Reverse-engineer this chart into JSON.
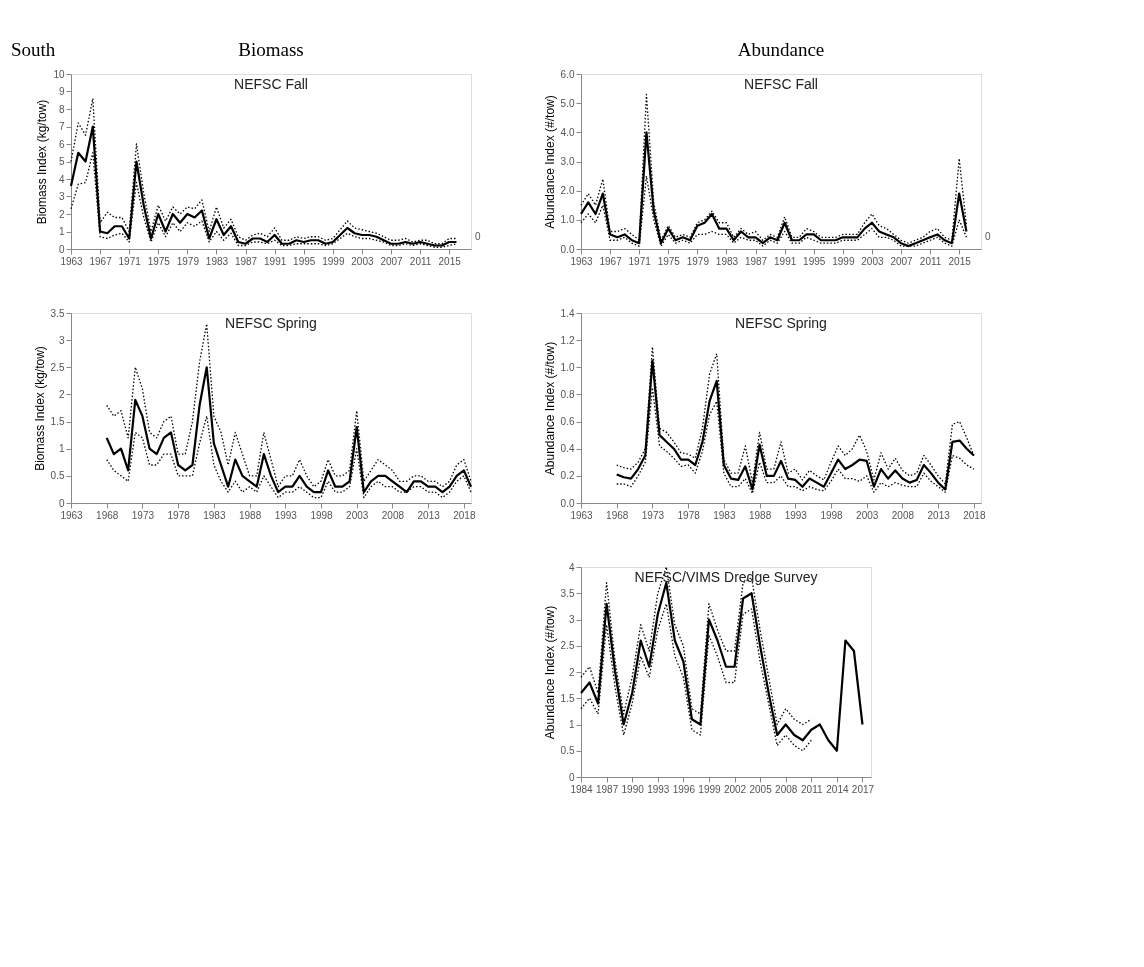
{
  "chart_data": [
    {
      "type": "line",
      "title": "NEFSC Fall",
      "ylabel": "Biomass Index (kg/tow)",
      "annotations": [
        "South",
        "Biomass",
        "0"
      ],
      "grid": false,
      "xlim": [
        1963,
        2018
      ],
      "xticks": [
        1963,
        1967,
        1971,
        1975,
        1979,
        1983,
        1987,
        1991,
        1995,
        1999,
        2003,
        2007,
        2011,
        2015
      ],
      "ylim": [
        0,
        10
      ],
      "yticks": [
        0,
        1,
        2,
        3,
        4,
        5,
        6,
        7,
        8,
        9,
        10
      ],
      "x": [
        1963,
        1964,
        1965,
        1966,
        1967,
        1968,
        1969,
        1970,
        1971,
        1972,
        1973,
        1974,
        1975,
        1976,
        1977,
        1978,
        1979,
        1980,
        1981,
        1982,
        1983,
        1984,
        1985,
        1986,
        1987,
        1988,
        1989,
        1990,
        1991,
        1992,
        1993,
        1994,
        1995,
        1996,
        1997,
        1998,
        1999,
        2000,
        2001,
        2002,
        2003,
        2004,
        2005,
        2006,
        2007,
        2008,
        2009,
        2010,
        2011,
        2012,
        2013,
        2014,
        2015,
        2016
      ],
      "series": [
        {
          "color": "#000000",
          "line_style": "solid",
          "values": [
            3.6,
            5.5,
            5.0,
            7.0,
            1.0,
            0.9,
            1.3,
            1.3,
            0.6,
            5.0,
            2.5,
            0.6,
            2.0,
            1.0,
            2.0,
            1.5,
            2.0,
            1.8,
            2.2,
            0.6,
            1.7,
            0.8,
            1.3,
            0.4,
            0.3,
            0.6,
            0.6,
            0.4,
            0.8,
            0.3,
            0.3,
            0.5,
            0.4,
            0.5,
            0.5,
            0.3,
            0.4,
            0.8,
            1.2,
            0.9,
            0.8,
            0.8,
            0.7,
            0.5,
            0.3,
            0.3,
            0.4,
            0.3,
            0.4,
            0.3,
            0.2,
            0.2,
            0.4,
            0.4
          ]
        },
        {
          "color": "#000000",
          "line_style": "dotted",
          "values": [
            5.0,
            7.2,
            6.5,
            8.6,
            1.5,
            2.1,
            1.8,
            1.8,
            1.0,
            6.0,
            3.2,
            1.0,
            2.5,
            1.6,
            2.4,
            2.0,
            2.4,
            2.3,
            2.8,
            1.0,
            2.4,
            1.2,
            1.7,
            0.7,
            0.5,
            0.8,
            0.9,
            0.7,
            1.2,
            0.5,
            0.5,
            0.7,
            0.6,
            0.7,
            0.7,
            0.5,
            0.6,
            1.1,
            1.6,
            1.2,
            1.1,
            1.0,
            0.9,
            0.7,
            0.5,
            0.5,
            0.6,
            0.4,
            0.5,
            0.5,
            0.3,
            0.3,
            0.6,
            0.6
          ]
        },
        {
          "color": "#000000",
          "line_style": "dotted",
          "values": [
            2.3,
            3.7,
            3.8,
            5.5,
            0.7,
            0.6,
            0.8,
            0.9,
            0.4,
            3.8,
            1.8,
            0.4,
            1.5,
            0.7,
            1.5,
            1.0,
            1.5,
            1.3,
            1.6,
            0.4,
            1.0,
            0.5,
            0.9,
            0.2,
            0.2,
            0.4,
            0.4,
            0.3,
            0.5,
            0.2,
            0.2,
            0.3,
            0.3,
            0.3,
            0.3,
            0.2,
            0.3,
            0.6,
            0.9,
            0.7,
            0.6,
            0.6,
            0.5,
            0.4,
            0.2,
            0.2,
            0.3,
            0.2,
            0.3,
            0.2,
            0.1,
            0.1,
            0.2,
            0.3
          ]
        }
      ]
    },
    {
      "type": "line",
      "title": "NEFSC Fall",
      "ylabel": "Abundance Index (#/tow)",
      "annotations": [
        "Abundance",
        "0"
      ],
      "grid": false,
      "xlim": [
        1963,
        2018
      ],
      "xticks": [
        1963,
        1967,
        1971,
        1975,
        1979,
        1983,
        1987,
        1991,
        1995,
        1999,
        2003,
        2007,
        2011,
        2015
      ],
      "ylim": [
        0,
        6
      ],
      "yticks": [
        {
          "value": 0,
          "label": "0.0"
        },
        {
          "value": 1,
          "label": "1.0"
        },
        {
          "value": 2,
          "label": "2.0"
        },
        {
          "value": 3,
          "label": "3.0"
        },
        {
          "value": 4,
          "label": "4.0"
        },
        {
          "value": 5,
          "label": "5.0"
        },
        {
          "value": 6,
          "label": "6.0"
        }
      ],
      "x": [
        1963,
        1964,
        1965,
        1966,
        1967,
        1968,
        1969,
        1970,
        1971,
        1972,
        1973,
        1974,
        1975,
        1976,
        1977,
        1978,
        1979,
        1980,
        1981,
        1982,
        1983,
        1984,
        1985,
        1986,
        1987,
        1988,
        1989,
        1990,
        1991,
        1992,
        1993,
        1994,
        1995,
        1996,
        1997,
        1998,
        1999,
        2000,
        2001,
        2002,
        2003,
        2004,
        2005,
        2006,
        2007,
        2008,
        2009,
        2010,
        2011,
        2012,
        2013,
        2014,
        2015,
        2016
      ],
      "series": [
        {
          "color": "#000000",
          "line_style": "solid",
          "values": [
            1.2,
            1.6,
            1.2,
            1.9,
            0.5,
            0.4,
            0.5,
            0.3,
            0.2,
            4.0,
            1.3,
            0.2,
            0.7,
            0.3,
            0.4,
            0.3,
            0.8,
            0.9,
            1.2,
            0.7,
            0.7,
            0.3,
            0.6,
            0.4,
            0.4,
            0.2,
            0.4,
            0.3,
            0.9,
            0.3,
            0.3,
            0.5,
            0.5,
            0.3,
            0.3,
            0.3,
            0.4,
            0.4,
            0.4,
            0.7,
            0.9,
            0.6,
            0.5,
            0.4,
            0.2,
            0.1,
            0.2,
            0.3,
            0.4,
            0.5,
            0.3,
            0.2,
            1.9,
            0.6
          ]
        },
        {
          "color": "#000000",
          "line_style": "dotted",
          "values": [
            1.5,
            1.9,
            1.5,
            2.4,
            0.6,
            0.6,
            0.7,
            0.5,
            0.3,
            5.3,
            1.6,
            0.3,
            0.8,
            0.4,
            0.5,
            0.4,
            0.9,
            1.0,
            1.3,
            0.9,
            0.9,
            0.4,
            0.7,
            0.5,
            0.6,
            0.3,
            0.5,
            0.4,
            1.1,
            0.4,
            0.4,
            0.7,
            0.6,
            0.4,
            0.4,
            0.4,
            0.5,
            0.5,
            0.5,
            0.9,
            1.2,
            0.8,
            0.7,
            0.5,
            0.3,
            0.2,
            0.3,
            0.4,
            0.6,
            0.7,
            0.4,
            0.3,
            3.1,
            0.8
          ]
        },
        {
          "color": "#000000",
          "line_style": "dotted",
          "values": [
            0.9,
            1.2,
            0.9,
            1.5,
            0.3,
            0.3,
            0.4,
            0.2,
            0.1,
            2.5,
            1.0,
            0.1,
            0.5,
            0.2,
            0.3,
            0.2,
            0.5,
            0.5,
            0.6,
            0.5,
            0.5,
            0.2,
            0.4,
            0.3,
            0.3,
            0.1,
            0.3,
            0.2,
            0.6,
            0.2,
            0.2,
            0.4,
            0.3,
            0.2,
            0.2,
            0.2,
            0.3,
            0.3,
            0.3,
            0.5,
            0.7,
            0.4,
            0.4,
            0.3,
            0.1,
            0.1,
            0.1,
            0.2,
            0.3,
            0.4,
            0.2,
            0.1,
            1.0,
            0.4
          ]
        }
      ]
    },
    {
      "type": "line",
      "title": "NEFSC Spring",
      "ylabel": "Biomass Index (kg/tow)",
      "grid": false,
      "xlim": [
        1963,
        2019
      ],
      "xticks": [
        1963,
        1968,
        1973,
        1978,
        1983,
        1988,
        1993,
        1998,
        2003,
        2008,
        2013,
        2018
      ],
      "ylim": [
        0,
        3.5
      ],
      "yticks": [
        0,
        0.5,
        1,
        1.5,
        2,
        2.5,
        3,
        3.5
      ],
      "x": [
        1968,
        1969,
        1970,
        1971,
        1972,
        1973,
        1974,
        1975,
        1976,
        1977,
        1978,
        1979,
        1980,
        1981,
        1982,
        1983,
        1984,
        1985,
        1986,
        1987,
        1988,
        1989,
        1990,
        1991,
        1992,
        1993,
        1994,
        1995,
        1996,
        1997,
        1998,
        1999,
        2000,
        2001,
        2002,
        2003,
        2004,
        2005,
        2006,
        2007,
        2008,
        2009,
        2010,
        2011,
        2012,
        2013,
        2014,
        2015,
        2016,
        2017,
        2018,
        2019
      ],
      "series": [
        {
          "color": "#000000",
          "line_style": "solid",
          "values": [
            1.2,
            0.9,
            1.0,
            0.6,
            1.9,
            1.6,
            1.0,
            0.9,
            1.2,
            1.3,
            0.7,
            0.6,
            0.7,
            1.8,
            2.5,
            1.1,
            0.7,
            0.3,
            0.8,
            0.5,
            0.4,
            0.3,
            0.9,
            0.5,
            0.2,
            0.3,
            0.3,
            0.5,
            0.3,
            0.2,
            0.2,
            0.6,
            0.3,
            0.3,
            0.4,
            1.4,
            0.2,
            0.4,
            0.5,
            0.5,
            0.4,
            0.3,
            0.2,
            0.4,
            0.4,
            0.3,
            0.3,
            0.2,
            0.3,
            0.5,
            0.6,
            0.3
          ]
        },
        {
          "color": "#000000",
          "line_style": "dotted",
          "values": [
            1.8,
            1.6,
            1.7,
            1.2,
            2.5,
            2.1,
            1.3,
            1.2,
            1.5,
            1.6,
            0.9,
            0.9,
            1.5,
            2.6,
            3.3,
            1.6,
            1.3,
            0.7,
            1.3,
            0.9,
            0.5,
            0.5,
            1.3,
            0.8,
            0.3,
            0.5,
            0.5,
            0.8,
            0.5,
            0.3,
            0.4,
            0.8,
            0.5,
            0.5,
            0.6,
            1.7,
            0.4,
            0.6,
            0.8,
            0.7,
            0.6,
            0.4,
            0.4,
            0.5,
            0.5,
            0.4,
            0.4,
            0.3,
            0.4,
            0.7,
            0.8,
            0.4
          ]
        },
        {
          "color": "#000000",
          "line_style": "dotted",
          "values": [
            0.8,
            0.6,
            0.5,
            0.4,
            1.3,
            1.2,
            0.7,
            0.7,
            0.9,
            0.9,
            0.5,
            0.5,
            0.5,
            1.1,
            1.6,
            0.7,
            0.4,
            0.2,
            0.4,
            0.2,
            0.3,
            0.2,
            0.5,
            0.3,
            0.1,
            0.2,
            0.2,
            0.3,
            0.2,
            0.1,
            0.1,
            0.4,
            0.2,
            0.2,
            0.3,
            1.0,
            0.1,
            0.3,
            0.4,
            0.3,
            0.3,
            0.2,
            0.2,
            0.3,
            0.3,
            0.2,
            0.2,
            0.1,
            0.2,
            0.4,
            0.5,
            0.2
          ]
        }
      ]
    },
    {
      "type": "line",
      "title": "NEFSC Spring",
      "ylabel": "Abundance Index (#/tow)",
      "grid": false,
      "xlim": [
        1963,
        2019
      ],
      "xticks": [
        1963,
        1968,
        1973,
        1978,
        1983,
        1988,
        1993,
        1998,
        2003,
        2008,
        2013,
        2018
      ],
      "ylim": [
        0,
        1.4
      ],
      "yticks": [
        {
          "value": 0,
          "label": "0.0"
        },
        {
          "value": 0.2,
          "label": "0.2"
        },
        {
          "value": 0.4,
          "label": "0.4"
        },
        {
          "value": 0.6,
          "label": "0.6"
        },
        {
          "value": 0.8,
          "label": "0.8"
        },
        {
          "value": 1,
          "label": "1.0"
        },
        {
          "value": 1.2,
          "label": "1.2"
        },
        {
          "value": 1.4,
          "label": "1.4"
        }
      ],
      "x": [
        1968,
        1969,
        1970,
        1971,
        1972,
        1973,
        1974,
        1975,
        1976,
        1977,
        1978,
        1979,
        1980,
        1981,
        1982,
        1983,
        1984,
        1985,
        1986,
        1987,
        1988,
        1989,
        1990,
        1991,
        1992,
        1993,
        1994,
        1995,
        1996,
        1997,
        1998,
        1999,
        2000,
        2001,
        2002,
        2003,
        2004,
        2005,
        2006,
        2007,
        2008,
        2009,
        2010,
        2011,
        2012,
        2013,
        2014,
        2015,
        2016,
        2017,
        2018
      ],
      "series": [
        {
          "color": "#000000",
          "line_style": "solid",
          "values": [
            0.21,
            0.19,
            0.18,
            0.25,
            0.35,
            1.05,
            0.5,
            0.45,
            0.4,
            0.32,
            0.32,
            0.28,
            0.45,
            0.75,
            0.9,
            0.28,
            0.18,
            0.17,
            0.27,
            0.1,
            0.43,
            0.2,
            0.2,
            0.31,
            0.18,
            0.17,
            0.12,
            0.18,
            0.15,
            0.12,
            0.22,
            0.32,
            0.25,
            0.28,
            0.32,
            0.31,
            0.12,
            0.25,
            0.18,
            0.24,
            0.18,
            0.15,
            0.17,
            0.28,
            0.22,
            0.15,
            0.1,
            0.45,
            0.46,
            0.4,
            0.35
          ]
        },
        {
          "color": "#000000",
          "line_style": "dotted",
          "values": [
            0.28,
            0.26,
            0.25,
            0.3,
            0.4,
            1.15,
            0.55,
            0.52,
            0.45,
            0.37,
            0.36,
            0.33,
            0.55,
            0.95,
            1.1,
            0.32,
            0.22,
            0.22,
            0.42,
            0.15,
            0.52,
            0.25,
            0.25,
            0.45,
            0.22,
            0.25,
            0.17,
            0.24,
            0.2,
            0.17,
            0.3,
            0.42,
            0.35,
            0.4,
            0.5,
            0.38,
            0.17,
            0.37,
            0.25,
            0.33,
            0.24,
            0.2,
            0.22,
            0.35,
            0.28,
            0.2,
            0.14,
            0.58,
            0.6,
            0.48,
            0.35
          ]
        },
        {
          "color": "#000000",
          "line_style": "dotted",
          "values": [
            0.14,
            0.14,
            0.12,
            0.2,
            0.3,
            0.85,
            0.42,
            0.38,
            0.33,
            0.27,
            0.28,
            0.22,
            0.38,
            0.65,
            0.75,
            0.22,
            0.12,
            0.12,
            0.18,
            0.07,
            0.3,
            0.15,
            0.15,
            0.2,
            0.12,
            0.12,
            0.09,
            0.12,
            0.1,
            0.09,
            0.16,
            0.25,
            0.18,
            0.18,
            0.16,
            0.2,
            0.08,
            0.15,
            0.12,
            0.15,
            0.13,
            0.12,
            0.12,
            0.22,
            0.16,
            0.12,
            0.08,
            0.35,
            0.33,
            0.28,
            0.25
          ]
        }
      ]
    },
    {
      "type": "line",
      "title": "NEFSC/VIMS Dredge Survey",
      "ylabel": "Abundance Index (#/tow)",
      "grid": false,
      "xlim": [
        1984,
        2018
      ],
      "xticks": [
        1984,
        1987,
        1990,
        1993,
        1996,
        1999,
        2002,
        2005,
        2008,
        2011,
        2014,
        2017
      ],
      "ylim": [
        0,
        4
      ],
      "yticks": [
        0,
        0.5,
        1,
        1.5,
        2,
        2.5,
        3,
        3.5,
        4
      ],
      "x": [
        1984,
        1985,
        1986,
        1987,
        1988,
        1989,
        1990,
        1991,
        1992,
        1993,
        1994,
        1995,
        1996,
        1997,
        1998,
        1999,
        2000,
        2001,
        2002,
        2003,
        2004,
        2005,
        2006,
        2007,
        2008,
        2009,
        2010,
        2011,
        2012,
        2013,
        2014,
        2015,
        2016,
        2017
      ],
      "series": [
        {
          "color": "#000000",
          "line_style": "solid",
          "values": [
            1.6,
            1.8,
            1.4,
            3.3,
            2.0,
            1.0,
            1.6,
            2.6,
            2.1,
            3.1,
            3.7,
            2.6,
            2.2,
            1.1,
            1.0,
            3.0,
            2.6,
            2.1,
            2.1,
            3.4,
            3.5,
            2.5,
            1.6,
            0.8,
            1.0,
            0.8,
            0.7,
            0.9,
            1.0,
            0.7,
            0.5,
            2.6,
            2.4,
            1.0
          ]
        },
        {
          "color": "#000000",
          "line_style": "dotted",
          "values": [
            1.9,
            2.1,
            1.6,
            3.7,
            2.2,
            1.2,
            1.9,
            2.9,
            2.4,
            3.5,
            4.0,
            2.9,
            2.5,
            1.3,
            1.2,
            3.3,
            2.8,
            2.4,
            2.4,
            3.7,
            3.8,
            2.8,
            1.9,
            1.0,
            1.3,
            1.1,
            1.0,
            1.1,
            null,
            null,
            null,
            null,
            null,
            null
          ]
        },
        {
          "color": "#000000",
          "line_style": "dotted",
          "values": [
            1.3,
            1.5,
            1.2,
            2.9,
            1.7,
            0.8,
            1.4,
            2.3,
            1.9,
            2.8,
            3.3,
            2.3,
            1.9,
            0.9,
            0.8,
            2.7,
            2.3,
            1.8,
            1.8,
            3.1,
            3.2,
            2.2,
            1.4,
            0.6,
            0.8,
            0.6,
            0.5,
            0.7,
            null,
            null,
            null,
            null,
            null,
            null
          ]
        }
      ]
    }
  ]
}
